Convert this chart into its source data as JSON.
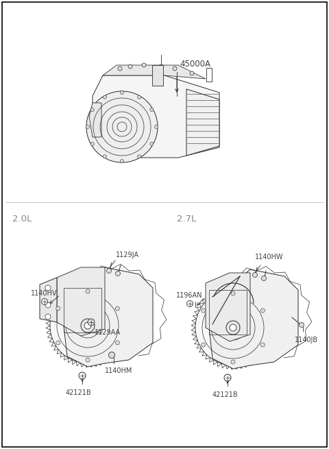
{
  "background_color": "#ffffff",
  "border_color": "#000000",
  "fig_width": 4.8,
  "fig_height": 6.55,
  "dpi": 100,
  "line_color": "#2a2a2a",
  "text_color": "#404040",
  "label_fontsize": 7.0,
  "section_fontsize": 9.5,
  "top_label": "45000A",
  "section_20L": "2.0L",
  "section_27L": "2.7L",
  "labels_20L": [
    "1129JA",
    "1140HV",
    "1129AA",
    "1140HM",
    "42121B"
  ],
  "labels_27L": [
    "1140HW",
    "1196AN",
    "1140JB",
    "42121B"
  ]
}
